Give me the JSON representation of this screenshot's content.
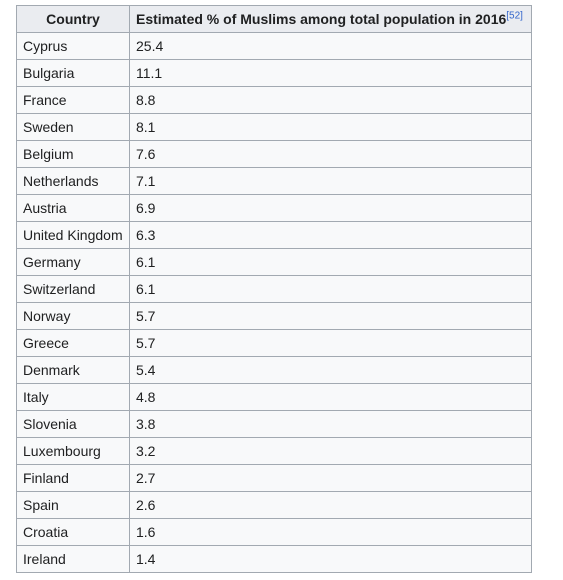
{
  "table": {
    "headers": {
      "country": "Country",
      "value": "Estimated % of Muslims among total population in 2016",
      "ref": "[52]"
    },
    "rows": [
      {
        "country": "Cyprus",
        "value": "25.4"
      },
      {
        "country": "Bulgaria",
        "value": "11.1"
      },
      {
        "country": "France",
        "value": "8.8"
      },
      {
        "country": "Sweden",
        "value": "8.1"
      },
      {
        "country": "Belgium",
        "value": "7.6"
      },
      {
        "country": "Netherlands",
        "value": "7.1"
      },
      {
        "country": "Austria",
        "value": "6.9"
      },
      {
        "country": "United Kingdom",
        "value": "6.3"
      },
      {
        "country": "Germany",
        "value": "6.1"
      },
      {
        "country": "Switzerland",
        "value": "6.1"
      },
      {
        "country": "Norway",
        "value": "5.7"
      },
      {
        "country": "Greece",
        "value": "5.7"
      },
      {
        "country": "Denmark",
        "value": "5.4"
      },
      {
        "country": "Italy",
        "value": "4.8"
      },
      {
        "country": "Slovenia",
        "value": "3.8"
      },
      {
        "country": "Luxembourg",
        "value": "3.2"
      },
      {
        "country": "Finland",
        "value": "2.7"
      },
      {
        "country": "Spain",
        "value": "2.6"
      },
      {
        "country": "Croatia",
        "value": "1.6"
      },
      {
        "country": "Ireland",
        "value": "1.4"
      }
    ]
  },
  "colors": {
    "header_bg": "#eaecf0",
    "cell_bg": "#f8f9fa",
    "border": "#a2a9b1",
    "text": "#202122",
    "link": "#3366cc"
  }
}
